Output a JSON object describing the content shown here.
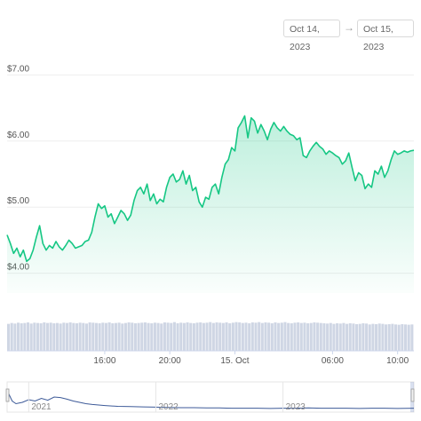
{
  "date_range": {
    "from": "Oct 14, 2023",
    "arrow": "→",
    "to": "Oct 15, 2023"
  },
  "colors": {
    "line": "#16c784",
    "volume": "#cfd6e4",
    "grid": "#eeeeee",
    "navigator_line": "#3d5a98"
  },
  "chart_data": [
    {
      "type": "area",
      "title": "",
      "xlabel": "",
      "ylabel": "",
      "y_tick_labels": [
        "$4.00",
        "$5.00",
        "$6.00",
        "$7.00"
      ],
      "y_ticks": [
        4,
        5,
        6,
        7
      ],
      "ylim": [
        3.7,
        7.3
      ],
      "x_tick_labels": [
        "16:00",
        "20:00",
        "15. Oct",
        "06:00",
        "10:00"
      ],
      "x_ticks_hours": [
        16,
        20,
        24,
        30,
        34
      ],
      "xlim_hours": [
        10.0,
        35.0
      ],
      "grid": true,
      "series": [
        {
          "x_hours": [
            10.0,
            10.2,
            10.4,
            10.6,
            10.8,
            11.0,
            11.2,
            11.4,
            11.6,
            11.8,
            12.0,
            12.2,
            12.4,
            12.6,
            12.8,
            13.0,
            13.2,
            13.4,
            13.6,
            13.8,
            14.0,
            14.2,
            14.4,
            14.6,
            14.8,
            15.0,
            15.2,
            15.4,
            15.6,
            15.8,
            16.0,
            16.2,
            16.4,
            16.6,
            16.8,
            17.0,
            17.2,
            17.4,
            17.6,
            17.8,
            18.0,
            18.2,
            18.4,
            18.6,
            18.8,
            19.0,
            19.2,
            19.4,
            19.6,
            19.8,
            20.0,
            20.2,
            20.4,
            20.6,
            20.8,
            21.0,
            21.2,
            21.4,
            21.6,
            21.8,
            22.0,
            22.2,
            22.4,
            22.6,
            22.8,
            23.0,
            23.2,
            23.4,
            23.6,
            23.8,
            24.0,
            24.2,
            24.4,
            24.6,
            24.8,
            25.0,
            25.2,
            25.4,
            25.6,
            25.8,
            26.0,
            26.2,
            26.4,
            26.6,
            26.8,
            27.0,
            27.2,
            27.4,
            27.6,
            27.8,
            28.0,
            28.2,
            28.4,
            28.6,
            28.8,
            29.0,
            29.2,
            29.4,
            29.6,
            29.8,
            30.0,
            30.2,
            30.4,
            30.6,
            30.8,
            31.0,
            31.2,
            31.4,
            31.6,
            31.8,
            32.0,
            32.2,
            32.4,
            32.6,
            32.8,
            33.0,
            33.2,
            33.4,
            33.6,
            33.8,
            34.0,
            34.2,
            34.4,
            34.6,
            34.8,
            35.0
          ],
          "values": [
            4.58,
            4.45,
            4.3,
            4.38,
            4.25,
            4.35,
            4.18,
            4.22,
            4.35,
            4.55,
            4.72,
            4.45,
            4.35,
            4.42,
            4.38,
            4.48,
            4.4,
            4.35,
            4.42,
            4.5,
            4.45,
            4.38,
            4.4,
            4.42,
            4.48,
            4.5,
            4.62,
            4.85,
            5.05,
            4.98,
            5.02,
            4.85,
            4.9,
            4.75,
            4.85,
            4.95,
            4.9,
            4.8,
            4.88,
            5.1,
            5.25,
            5.3,
            5.2,
            5.35,
            5.1,
            5.2,
            5.05,
            5.12,
            5.08,
            5.3,
            5.45,
            5.5,
            5.38,
            5.42,
            5.55,
            5.35,
            5.48,
            5.25,
            5.3,
            5.08,
            5.0,
            5.15,
            5.12,
            5.3,
            5.35,
            5.2,
            5.45,
            5.65,
            5.72,
            5.9,
            5.85,
            6.2,
            6.28,
            6.38,
            6.05,
            6.35,
            6.3,
            6.12,
            6.25,
            6.15,
            6.02,
            6.18,
            6.28,
            6.2,
            6.15,
            6.22,
            6.15,
            6.1,
            6.08,
            6.02,
            6.05,
            5.78,
            5.75,
            5.85,
            5.92,
            5.98,
            5.92,
            5.88,
            5.8,
            5.85,
            5.82,
            5.78,
            5.75,
            5.65,
            5.7,
            5.82,
            5.6,
            5.4,
            5.52,
            5.48,
            5.28,
            5.35,
            5.3,
            5.55,
            5.5,
            5.62,
            5.45,
            5.55,
            5.72,
            5.85,
            5.8,
            5.82,
            5.85,
            5.83,
            5.85,
            5.86
          ]
        }
      ]
    },
    {
      "type": "bar",
      "title": "",
      "description_series": "volume",
      "ylim": [
        0,
        1
      ],
      "values_relative": [
        0.92,
        0.95,
        0.93,
        0.96,
        0.94,
        0.95,
        0.97,
        0.93,
        0.96,
        0.95,
        0.94,
        0.97,
        0.95,
        0.96,
        0.94,
        0.95,
        0.93,
        0.96,
        0.95,
        0.97,
        0.95,
        0.94,
        0.96,
        0.95,
        0.93,
        0.97,
        0.96,
        0.95,
        0.94,
        0.96,
        0.95,
        0.97,
        0.94,
        0.95,
        0.96,
        0.93,
        0.95,
        0.97,
        0.96,
        0.94,
        0.95,
        0.96,
        0.97,
        0.95,
        0.94,
        0.96,
        0.95,
        0.93,
        0.97,
        0.96,
        0.95,
        0.98,
        0.94,
        0.96,
        0.95,
        0.97,
        0.95,
        0.94,
        0.96,
        0.97,
        0.95,
        0.96,
        0.98,
        0.95,
        0.97,
        0.96,
        0.95,
        0.97,
        0.94,
        0.96,
        0.98,
        0.97,
        0.95,
        0.96,
        0.94,
        0.97,
        0.96,
        0.98,
        0.95,
        0.97,
        0.96,
        0.94,
        0.97,
        0.95,
        0.96,
        0.98,
        0.95,
        0.94,
        0.96,
        0.97,
        0.95,
        0.96,
        0.94,
        0.95,
        0.97,
        0.96,
        0.95,
        0.94,
        0.93,
        0.95,
        0.92,
        0.94,
        0.93,
        0.95,
        0.92,
        0.94,
        0.93,
        0.91,
        0.92,
        0.94,
        0.93,
        0.9,
        0.92,
        0.91,
        0.93,
        0.92,
        0.9,
        0.91,
        0.92,
        0.9,
        0.89,
        0.91,
        0.9,
        0.89,
        0.9
      ]
    },
    {
      "type": "line",
      "title": "navigator",
      "x_tick_labels": [
        "2021",
        "2022",
        "2023"
      ],
      "x_ticks_year": [
        2021,
        2022,
        2023
      ],
      "xlim_year": [
        2020.83,
        2024.03
      ],
      "x_year": [
        2020.83,
        2020.87,
        2020.9,
        2020.95,
        2021.0,
        2021.05,
        2021.1,
        2021.15,
        2021.2,
        2021.25,
        2021.3,
        2021.35,
        2021.4,
        2021.45,
        2021.5,
        2021.55,
        2021.6,
        2021.7,
        2021.8,
        2021.9,
        2022.0,
        2022.1,
        2022.2,
        2022.3,
        2022.4,
        2022.5,
        2022.6,
        2022.7,
        2022.8,
        2022.9,
        2023.0,
        2023.1,
        2023.2,
        2023.3,
        2023.4,
        2023.5,
        2023.6,
        2023.7,
        2023.8,
        2023.9,
        2024.03
      ],
      "values_relative": [
        0.75,
        0.35,
        0.25,
        0.3,
        0.4,
        0.35,
        0.45,
        0.38,
        0.5,
        0.48,
        0.42,
        0.35,
        0.3,
        0.25,
        0.22,
        0.2,
        0.18,
        0.15,
        0.14,
        0.13,
        0.12,
        0.11,
        0.1,
        0.1,
        0.09,
        0.09,
        0.08,
        0.08,
        0.08,
        0.07,
        0.08,
        0.08,
        0.09,
        0.08,
        0.08,
        0.08,
        0.07,
        0.08,
        0.08,
        0.07,
        0.08
      ]
    }
  ]
}
